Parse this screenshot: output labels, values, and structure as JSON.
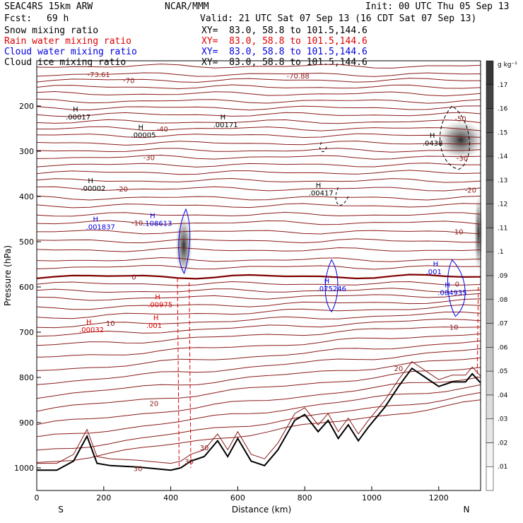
{
  "header": {
    "model": "SEAC4RS 15km ARW",
    "org": "NCAR/MMM",
    "init": "Init: 00 UTC Thu 05 Sep 13",
    "fcst_label": "Fcst:",
    "fcst_value": "69 h",
    "valid": "Valid: 21 UTC Sat 07 Sep 13 (16 CDT Sat 07 Sep 13)"
  },
  "fields": [
    {
      "label": "Snow mixing ratio",
      "xy": "XY=  83.0, 58.8 to 101.5,144.6",
      "color": "#000000"
    },
    {
      "label": "Rain water mixing ratio",
      "xy": "XY=  83.0, 58.8 to 101.5,144.6",
      "color": "#e00000"
    },
    {
      "label": "Cloud water mixing ratio",
      "xy": "XY=  83.0, 58.8 to 101.5,144.6",
      "color": "#0000e0"
    },
    {
      "label": "Cloud ice mixing ratio",
      "xy": "XY=  83.0, 58.8 to 101.5,144.6",
      "color": "#000000"
    }
  ],
  "chart_data": {
    "type": "cross-section",
    "xlabel": "Distance (km)",
    "ylabel": "Pressure (hPa)",
    "xlim": [
      0,
      1325
    ],
    "ylim": [
      1050,
      100
    ],
    "x_ticks": [
      "0",
      "200",
      "400",
      "600",
      "800",
      "1000",
      "1200"
    ],
    "y_ticks": [
      "200",
      "300",
      "400",
      "500",
      "600",
      "700",
      "800",
      "900",
      "1000"
    ],
    "end_labels": {
      "left": "S",
      "right": "N"
    },
    "colorbar": {
      "unit": "g kg⁻¹",
      "ticks": [
        ".01",
        ".02",
        ".03",
        ".04",
        ".05",
        ".06",
        ".07",
        ".08",
        ".09",
        ".1",
        ".11",
        ".12",
        ".13",
        ".14",
        ".15",
        ".16",
        ".17"
      ]
    },
    "temperature_labels": [
      {
        "text": "-70",
        "x": 275,
        "p": 143
      },
      {
        "text": "-70.88",
        "x": 780,
        "p": 133
      },
      {
        "text": "-73.61",
        "x": 185,
        "p": 130
      },
      {
        "text": "-40",
        "x": 375,
        "p": 250
      },
      {
        "text": "-30",
        "x": 335,
        "p": 313
      },
      {
        "text": "-20",
        "x": 255,
        "p": 383
      },
      {
        "text": "-10",
        "x": 300,
        "p": 458
      },
      {
        "text": "0",
        "x": 290,
        "p": 577
      },
      {
        "text": "10",
        "x": 220,
        "p": 680
      },
      {
        "text": "20",
        "x": 350,
        "p": 857
      },
      {
        "text": "30",
        "x": 500,
        "p": 955
      },
      {
        "text": "30",
        "x": 302,
        "p": 1001
      },
      {
        "text": "30",
        "x": 455,
        "p": 985
      },
      {
        "text": "-50",
        "x": 1265,
        "p": 227
      },
      {
        "text": "-30",
        "x": 1270,
        "p": 315
      },
      {
        "text": "-20",
        "x": 1295,
        "p": 385
      },
      {
        "text": "10",
        "x": 1260,
        "p": 477
      },
      {
        "text": "0",
        "x": 1255,
        "p": 593
      },
      {
        "text": "10",
        "x": 1245,
        "p": 688
      },
      {
        "text": "20",
        "x": 1080,
        "p": 780
      }
    ],
    "maxima_labels": [
      {
        "text": ".00017",
        "x": 150,
        "p": 225,
        "color": "#000000"
      },
      {
        "text": ".00171",
        "x": 590,
        "p": 242,
        "color": "#000000"
      },
      {
        "text": ".00005",
        "x": 345,
        "p": 265,
        "color": "#000000"
      },
      {
        "text": ".0438",
        "x": 1215,
        "p": 283,
        "color": "#000000"
      },
      {
        "text": ".00002",
        "x": 195,
        "p": 383,
        "color": "#000000"
      },
      {
        "text": ".00417",
        "x": 875,
        "p": 393,
        "color": "#000000"
      },
      {
        "text": ".001837",
        "x": 210,
        "p": 468,
        "color": "#0000e0"
      },
      {
        "text": ".108613",
        "x": 380,
        "p": 460,
        "color": "#0000e0"
      },
      {
        "text": ".001",
        "x": 1225,
        "p": 567,
        "color": "#0000e0"
      },
      {
        "text": ".075246",
        "x": 900,
        "p": 605,
        "color": "#0000e0"
      },
      {
        "text": ".084935",
        "x": 1260,
        "p": 613,
        "color": "#0000e0"
      },
      {
        "text": ".00975",
        "x": 395,
        "p": 640,
        "color": "#e00000"
      },
      {
        "text": ".001",
        "x": 390,
        "p": 686,
        "color": "#e00000"
      },
      {
        "text": ".00032",
        "x": 190,
        "p": 695,
        "color": "#e00000"
      }
    ]
  }
}
